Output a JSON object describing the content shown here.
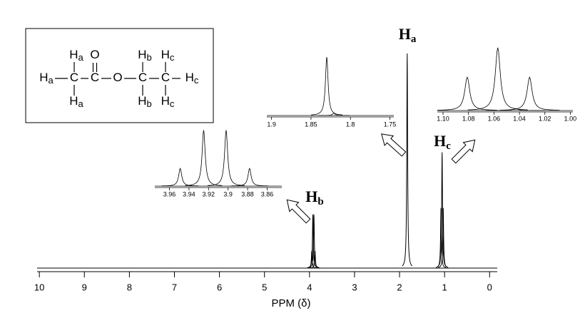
{
  "chart_data": [
    {
      "type": "spectrum",
      "xlabel": "PPM (δ)",
      "xlim": [
        10.05,
        -0.17
      ],
      "ylim": [
        0,
        100
      ],
      "xticks": [
        10,
        9,
        8,
        7,
        6,
        5,
        4,
        3,
        2,
        1,
        0
      ],
      "x": [
        3.949,
        3.925,
        3.902,
        3.878,
        1.83,
        1.079,
        1.055,
        1.031
      ],
      "values": [
        8,
        25,
        25,
        8,
        100,
        28,
        54,
        28
      ],
      "annotations": [
        {
          "text": "H",
          "sub": "a"
        },
        {
          "text": "H",
          "sub": "b"
        },
        {
          "text": "H",
          "sub": "c"
        }
      ]
    },
    {
      "type": "spectrum",
      "xlim": [
        3.975,
        3.845
      ],
      "ylim": [
        0,
        100
      ],
      "xticks": [
        3.96,
        3.94,
        3.92,
        3.9,
        3.88,
        3.86
      ],
      "x": [
        3.949,
        3.925,
        3.902,
        3.878
      ],
      "values": [
        31,
        98,
        98,
        31
      ]
    },
    {
      "type": "spectrum",
      "xlim": [
        1.906,
        1.745
      ],
      "ylim": [
        0,
        100
      ],
      "xticks": [
        1.9,
        1.85,
        1.8,
        1.75
      ],
      "x": [
        1.83,
        1.821
      ],
      "values": [
        100,
        4
      ]
    },
    {
      "type": "spectrum",
      "xlim": [
        1.1045,
        0.998
      ],
      "ylim": [
        0,
        100
      ],
      "xticks": [
        {
          "value": 1.1,
          "label": "1.10"
        },
        1.08,
        1.06,
        1.04,
        1.02,
        {
          "value": 1,
          "label": "1.00"
        }
      ],
      "x": [
        1.081,
        1.057,
        1.032,
        1.043
      ],
      "values": [
        52,
        98,
        52,
        3
      ]
    }
  ],
  "structure": {
    "atoms": [
      {
        "symbol": "H",
        "sub": "a"
      },
      {
        "symbol": "C"
      },
      {
        "symbol": "C"
      },
      {
        "symbol": "O"
      },
      {
        "symbol": "C"
      },
      {
        "symbol": "C"
      },
      {
        "symbol": "H",
        "sub": "c"
      },
      {
        "symbol": "H",
        "sub": "a"
      },
      {
        "symbol": "H",
        "sub": "a"
      },
      {
        "symbol": "O"
      },
      {
        "symbol": "H",
        "sub": "b"
      },
      {
        "symbol": "H",
        "sub": "b"
      },
      {
        "symbol": "H",
        "sub": "c"
      },
      {
        "symbol": "H",
        "sub": "c"
      }
    ]
  }
}
